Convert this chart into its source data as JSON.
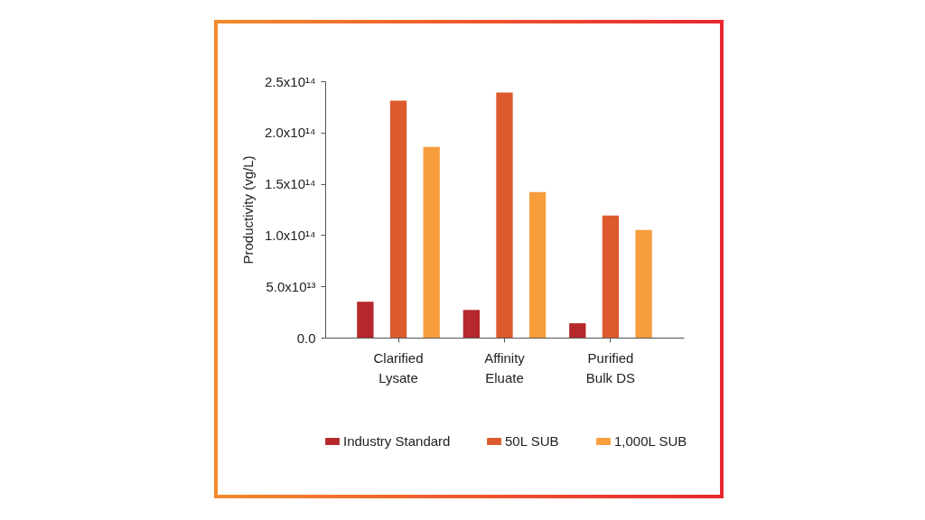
{
  "chart_data": {
    "type": "bar",
    "ylabel": "Productivity (vg/L)",
    "categories": [
      "Clarified Lysate",
      "Affinity Eluate",
      "Purified Bulk DS"
    ],
    "series": [
      {
        "name": "Industry Standard",
        "color": "#b5282b",
        "values": [
          35000000000000.0,
          27000000000000.0,
          14000000000000.0
        ]
      },
      {
        "name": "50L SUB",
        "color": "#dc5a2c",
        "values": [
          231000000000000.0,
          239000000000000.0,
          119000000000000.0
        ]
      },
      {
        "name": "1,000L SUB",
        "color": "#f79d3b",
        "values": [
          186000000000000.0,
          142000000000000.0,
          105000000000000.0
        ]
      }
    ],
    "ylim": [
      0,
      250000000000000.0
    ],
    "yticks": [
      {
        "value": 0,
        "label": "0.0"
      },
      {
        "value": 50000000000000.0,
        "label": "5.0x10¹³"
      },
      {
        "value": 100000000000000.0,
        "label": "1.0x10¹⁴"
      },
      {
        "value": 150000000000000.0,
        "label": "1.5x10¹⁴"
      },
      {
        "value": 200000000000000.0,
        "label": "2.0x10¹⁴"
      },
      {
        "value": 250000000000000.0,
        "label": "2.5x10¹⁴"
      }
    ],
    "grid": false,
    "legend": "bottom"
  }
}
